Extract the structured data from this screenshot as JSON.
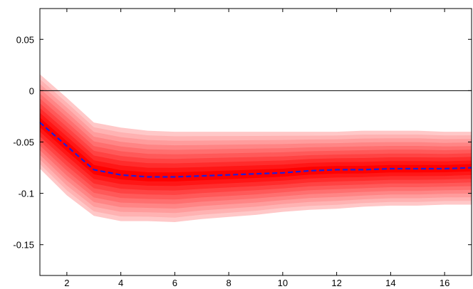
{
  "chart_data": {
    "type": "area",
    "title": "",
    "xlabel": "",
    "ylabel": "",
    "xlim": [
      1,
      17
    ],
    "ylim": [
      -0.18,
      0.08
    ],
    "xticks": [
      2,
      4,
      6,
      8,
      10,
      12,
      14,
      16
    ],
    "yticks": [
      0.05,
      0,
      -0.05,
      -0.1,
      -0.15
    ],
    "ytick_labels": [
      "0.05",
      "0",
      "-0.05",
      "-0.1",
      "-0.15"
    ],
    "xtick_labels": [
      "2",
      "4",
      "6",
      "8",
      "10",
      "12",
      "14",
      "16"
    ],
    "zero_line": 0,
    "grid": false,
    "x": [
      1,
      2,
      3,
      4,
      5,
      6,
      7,
      8,
      9,
      10,
      11,
      12,
      13,
      14,
      15,
      16,
      17
    ],
    "median": [
      -0.031,
      -0.054,
      -0.077,
      -0.082,
      -0.084,
      -0.084,
      -0.083,
      -0.082,
      -0.081,
      -0.08,
      -0.078,
      -0.077,
      -0.077,
      -0.076,
      -0.076,
      -0.076,
      -0.075
    ],
    "band_outer_upper": [
      0.016,
      -0.007,
      -0.031,
      -0.036,
      -0.039,
      -0.04,
      -0.04,
      -0.04,
      -0.04,
      -0.04,
      -0.04,
      -0.04,
      -0.039,
      -0.039,
      -0.039,
      -0.04,
      -0.04
    ],
    "band_outer_lower": [
      -0.076,
      -0.102,
      -0.122,
      -0.127,
      -0.127,
      -0.128,
      -0.125,
      -0.123,
      -0.121,
      -0.118,
      -0.116,
      -0.115,
      -0.113,
      -0.112,
      -0.112,
      -0.111,
      -0.111
    ],
    "band_count": 10,
    "colors": {
      "median_line": "#1f1fdc",
      "band_inner": "#ff0000",
      "band_outer": "#ffc8c8",
      "zero_line": "#000000",
      "axes": "#000000"
    }
  }
}
